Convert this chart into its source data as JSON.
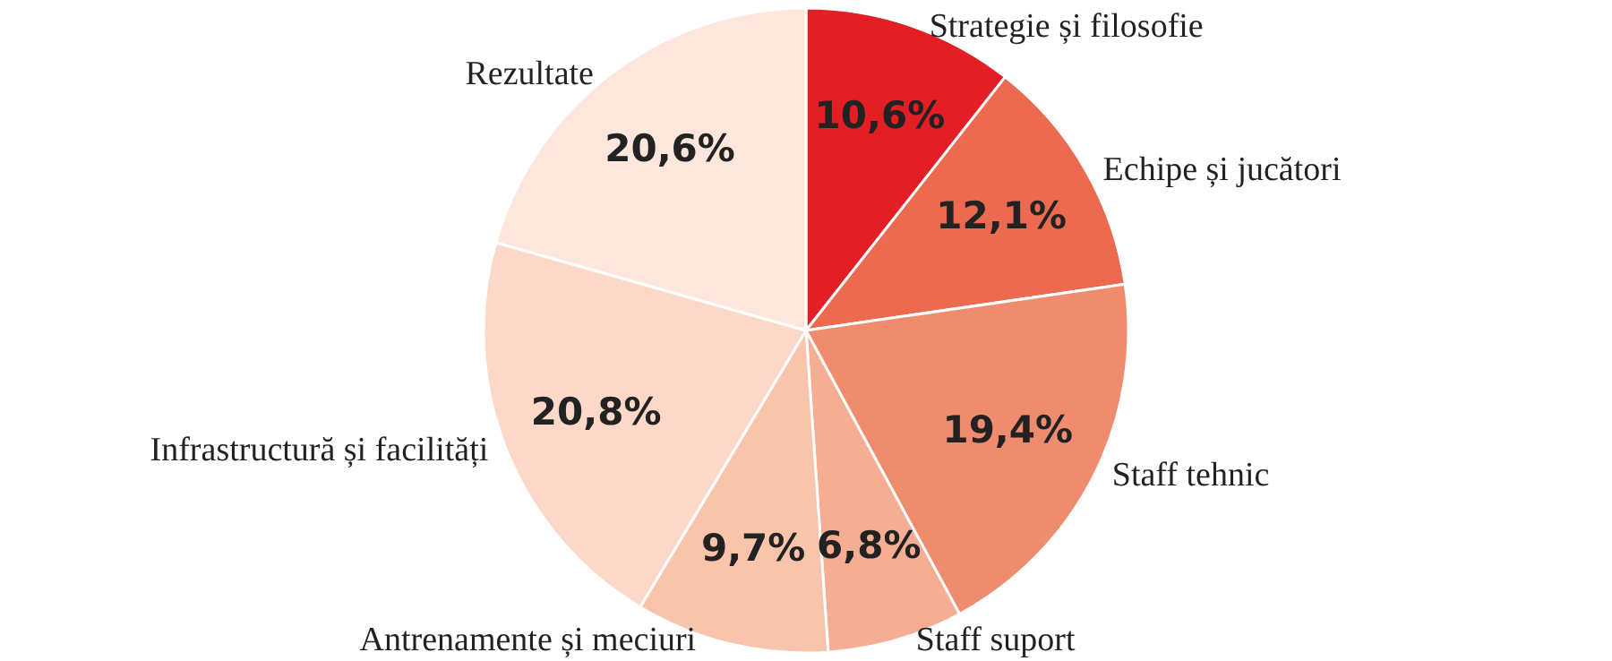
{
  "chart_data": {
    "type": "pie",
    "categories": [
      "Strategie și filosofie",
      "Echipe și jucători",
      "Staff tehnic",
      "Staff suport",
      "Antrenamente și meciuri",
      "Infrastructură și facilități",
      "Rezultate"
    ],
    "values": [
      10.6,
      12.1,
      19.4,
      6.8,
      9.7,
      20.8,
      20.6
    ],
    "value_labels": [
      "10,6%",
      "12,1%",
      "19,4%",
      "6,8%",
      "9,7%",
      "20,8%",
      "20,6%"
    ],
    "colors": [
      "#e31e24",
      "#ec6a4f",
      "#f08c6e",
      "#f5ae93",
      "#f8c4ac",
      "#fbd8c7",
      "#fde7dc"
    ]
  }
}
